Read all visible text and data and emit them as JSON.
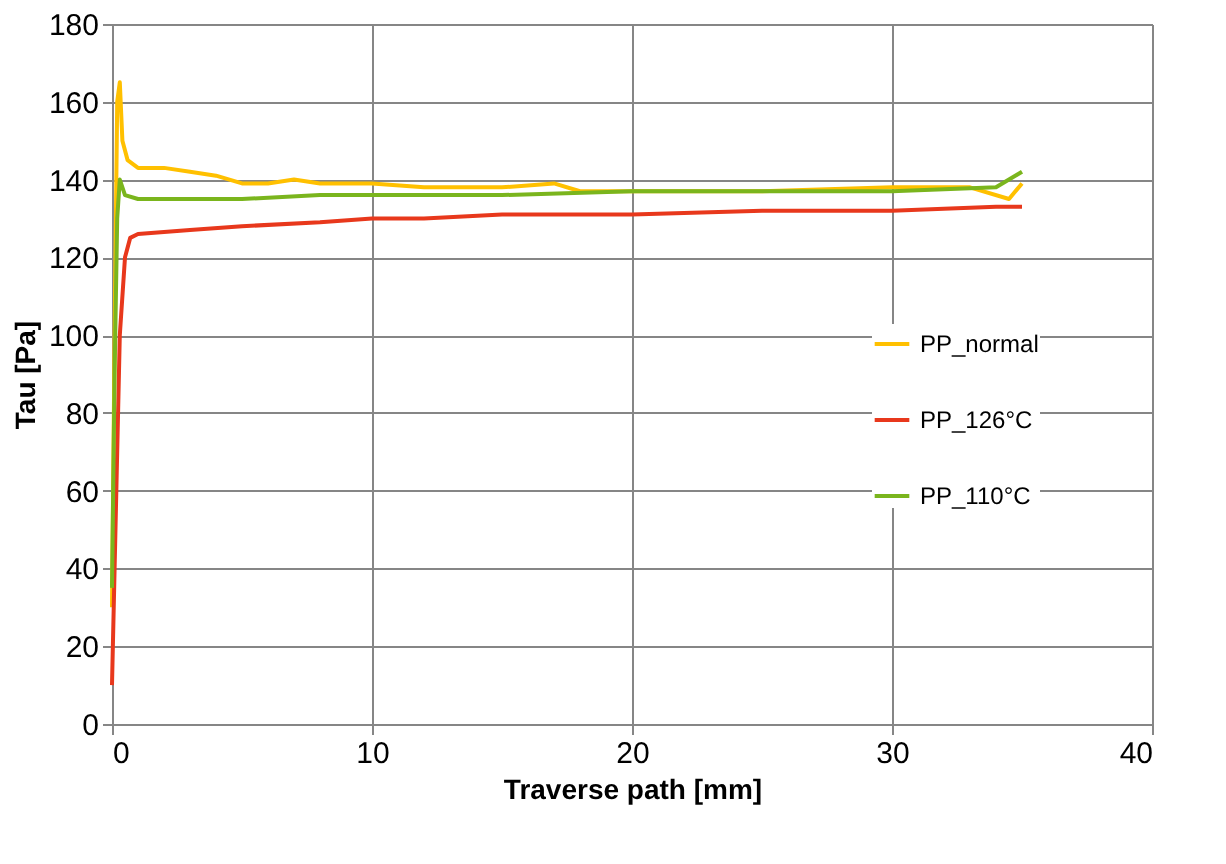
{
  "chart_data": {
    "type": "line",
    "xlabel": "Traverse path [mm]",
    "ylabel": "Tau [Pa]",
    "xlim": [
      0,
      40
    ],
    "xticks": [
      0,
      10,
      20,
      30,
      40
    ],
    "ylim": [
      0,
      180
    ],
    "yticks": [
      0,
      20,
      40,
      60,
      80,
      100,
      120,
      140,
      160,
      180
    ],
    "grid": true,
    "legend": "right",
    "marker": "none",
    "line_style": "solid",
    "series": [
      {
        "name": "PP_normal",
        "color": "#ffc000",
        "x": [
          0,
          0.1,
          0.2,
          0.3,
          0.4,
          0.6,
          1,
          2,
          3,
          4,
          5,
          6,
          7,
          8,
          10,
          12,
          15,
          17,
          18,
          20,
          25,
          30,
          33,
          34.5,
          35
        ],
        "values": [
          30,
          100,
          160,
          165,
          150,
          145,
          143,
          143,
          142,
          141,
          139,
          139,
          140,
          139,
          139,
          138,
          138,
          139,
          137,
          137,
          137,
          138,
          138,
          135,
          139
        ]
      },
      {
        "name": "PP_126°C",
        "color": "#e8381c",
        "x": [
          0,
          0.1,
          0.3,
          0.5,
          0.7,
          1,
          3,
          5,
          8,
          10,
          12,
          15,
          20,
          25,
          30,
          34,
          35
        ],
        "values": [
          10,
          40,
          100,
          120,
          125,
          126,
          127,
          128,
          129,
          130,
          130,
          131,
          131,
          132,
          132,
          133,
          133
        ]
      },
      {
        "name": "PP_110°C",
        "color": "#7ab51d",
        "x": [
          0,
          0.1,
          0.2,
          0.3,
          0.5,
          1,
          3,
          5,
          8,
          10,
          15,
          20,
          25,
          30,
          34,
          35
        ],
        "values": [
          35,
          90,
          130,
          140,
          136,
          135,
          135,
          135,
          136,
          136,
          136,
          137,
          137,
          137,
          138,
          142
        ]
      }
    ]
  }
}
